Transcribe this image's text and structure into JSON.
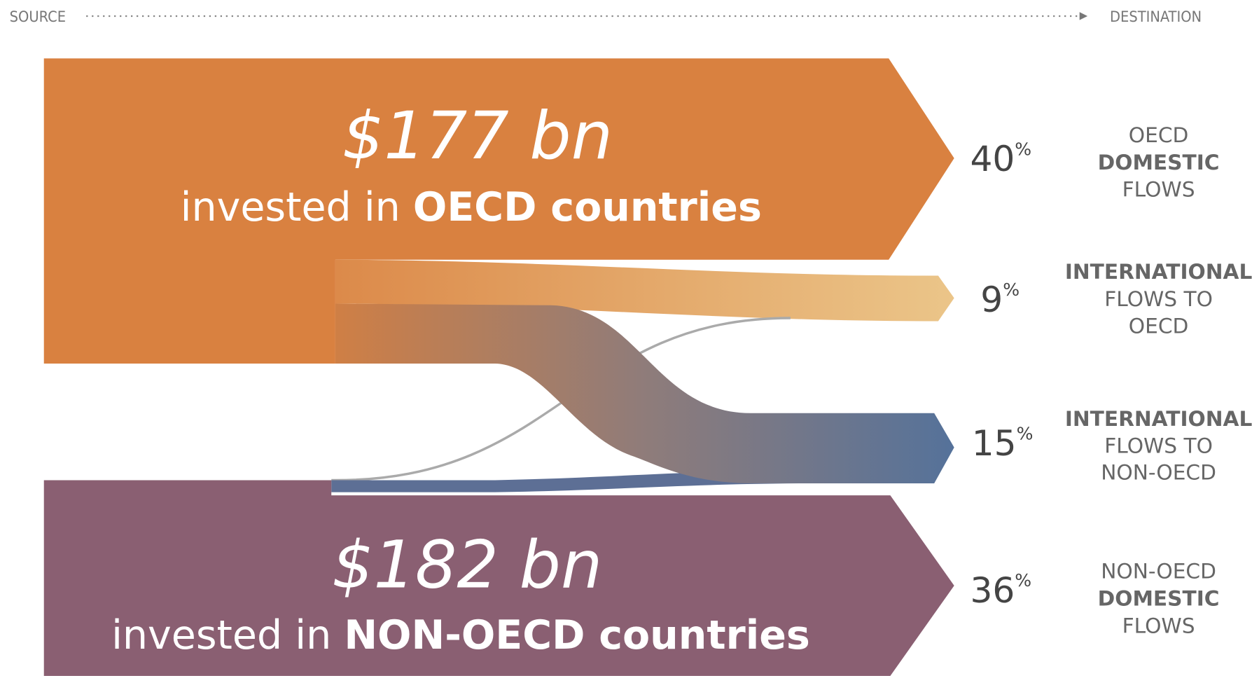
{
  "header": {
    "source": "SOURCE",
    "destination": "DESTINATION"
  },
  "sources": [
    {
      "amount": "$177 bn",
      "prefix": "invested in",
      "label": "OECD countries"
    },
    {
      "amount": "$182 bn",
      "prefix": "invested in",
      "label": "NON-OECD countries"
    }
  ],
  "destinations": [
    {
      "value": 40,
      "unit": "%",
      "lines": [
        "OECD",
        "DOMESTIC",
        "FLOWS"
      ]
    },
    {
      "value": 9,
      "unit": "%",
      "lines": [
        "INTERNATIONAL",
        "FLOWS TO",
        "OECD"
      ]
    },
    {
      "value": 15,
      "unit": "%",
      "lines": [
        "INTERNATIONAL",
        "FLOWS TO",
        "NON-OECD"
      ]
    },
    {
      "value": 36,
      "unit": "%",
      "lines": [
        "NON-OECD",
        "DOMESTIC",
        "FLOWS"
      ]
    }
  ]
}
